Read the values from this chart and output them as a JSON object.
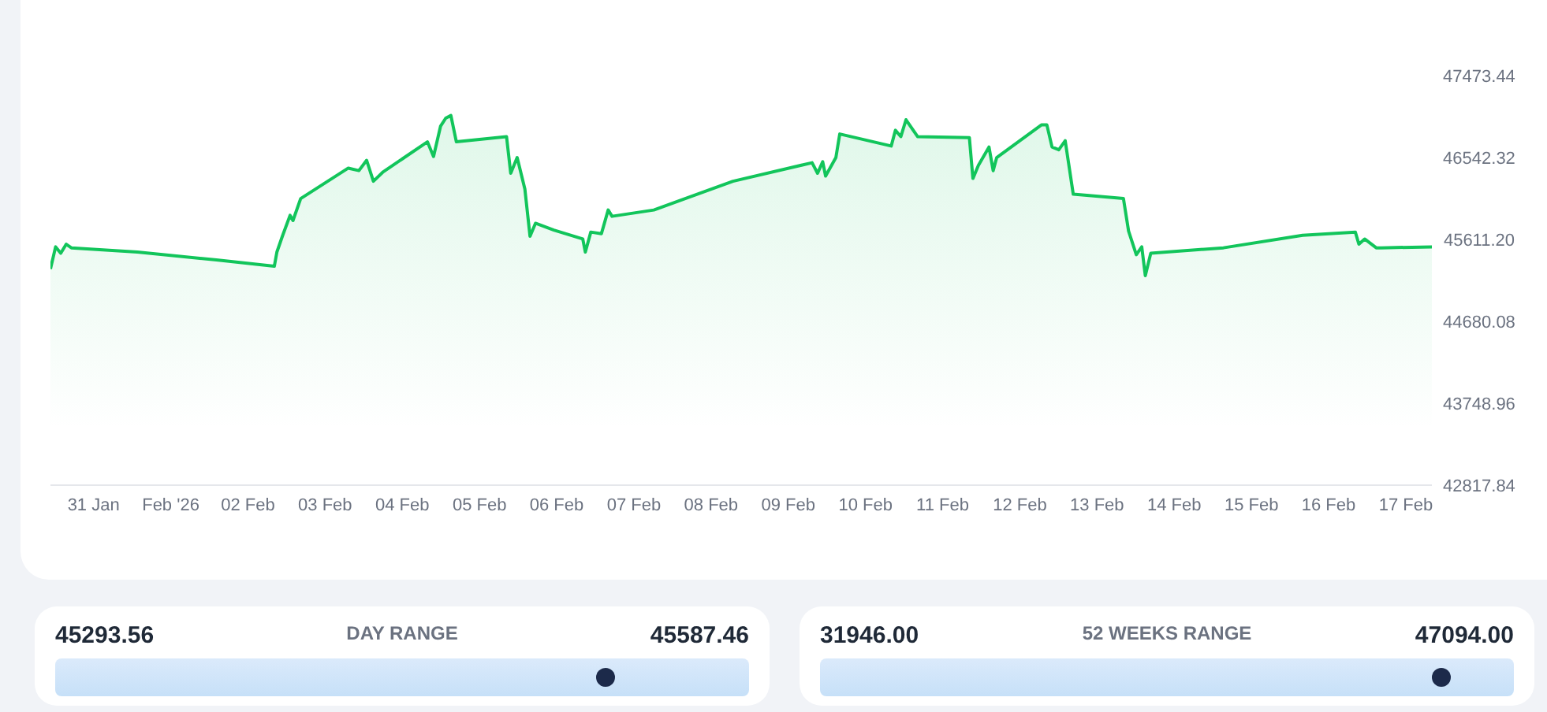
{
  "chart_data": [
    {
      "type": "area",
      "x": [
        "2026-01-30T10:36",
        "2026-01-30T12:12",
        "2026-01-30T13:48",
        "2026-01-30T15:30",
        "2026-01-30T17:06",
        "2026-01-31T13:36",
        "2026-02-01T14:12",
        "2026-02-02T08:12",
        "2026-02-02T09:00",
        "2026-02-02T10:42",
        "2026-02-02T13:06",
        "2026-02-02T14:00",
        "2026-02-02T16:24",
        "2026-02-03T07:12",
        "2026-02-03T10:30",
        "2026-02-03T12:54",
        "2026-02-03T15:00",
        "2026-02-03T17:54",
        "2026-02-04T07:48",
        "2026-02-04T09:42",
        "2026-02-04T11:54",
        "2026-02-04T13:30",
        "2026-02-04T15:06",
        "2026-02-04T16:48",
        "2026-02-05T08:24",
        "2026-02-05T09:42",
        "2026-02-05T11:42",
        "2026-02-05T14:06",
        "2026-02-05T15:42",
        "2026-02-05T17:24",
        "2026-02-05T23:06",
        "2026-02-06T08:06",
        "2026-02-06T08:54",
        "2026-02-06T10:36",
        "2026-02-06T13:54",
        "2026-02-06T16:00",
        "2026-02-06T17:12",
        "2026-02-07T06:12",
        "2026-02-08T06:48",
        "2026-02-09T07:24",
        "2026-02-09T09:06",
        "2026-02-09T10:42",
        "2026-02-09T11:36",
        "2026-02-09T14:48",
        "2026-02-09T16:00",
        "2026-02-10T08:00",
        "2026-02-10T09:18",
        "2026-02-10T11:00",
        "2026-02-10T12:36",
        "2026-02-10T16:12",
        "2026-02-11T08:18",
        "2026-02-11T09:24",
        "2026-02-11T11:06",
        "2026-02-11T14:24",
        "2026-02-11T15:42",
        "2026-02-11T16:48",
        "2026-02-12T06:42",
        "2026-02-12T08:24",
        "2026-02-12T10:00",
        "2026-02-12T12:06",
        "2026-02-12T14:06",
        "2026-02-12T16:36",
        "2026-02-13T08:12",
        "2026-02-13T09:48",
        "2026-02-13T12:12",
        "2026-02-13T13:54",
        "2026-02-13T15:00",
        "2026-02-13T16:42",
        "2026-02-14T15:18",
        "2026-02-15T15:54",
        "2026-02-16T08:18",
        "2026-02-16T09:24",
        "2026-02-16T11:12",
        "2026-02-16T14:48",
        "2026-02-16T16:24",
        "2026-02-17T08:06"
      ],
      "series": [
        {
          "color": "#12c55b",
          "values": [
            45276,
            45527,
            45455,
            45557,
            45516,
            45468,
            45378,
            45306,
            45468,
            45647,
            45885,
            45826,
            46076,
            46422,
            46393,
            46511,
            46273,
            46375,
            46721,
            46554,
            46900,
            46990,
            47020,
            46721,
            46780,
            46363,
            46542,
            46184,
            45647,
            45795,
            45718,
            45616,
            45468,
            45695,
            45677,
            45946,
            45874,
            45946,
            46273,
            46483,
            46363,
            46494,
            46332,
            46542,
            46810,
            46673,
            46852,
            46780,
            46972,
            46780,
            46769,
            46304,
            46452,
            46662,
            46393,
            46542,
            46913,
            46913,
            46662,
            46631,
            46733,
            46125,
            46076,
            45706,
            45437,
            45527,
            45199,
            45455,
            45516,
            45659,
            45695,
            45557,
            45616,
            45516,
            45516,
            45527
          ]
        }
      ],
      "xticks": [
        {
          "value": "2026-01-31",
          "label": "31 Jan"
        },
        {
          "value": "2026-02-01",
          "label": "Feb '26"
        },
        {
          "value": "2026-02-02",
          "label": "02 Feb"
        },
        {
          "value": "2026-02-03",
          "label": "03 Feb"
        },
        {
          "value": "2026-02-04",
          "label": "04 Feb"
        },
        {
          "value": "2026-02-05",
          "label": "05 Feb"
        },
        {
          "value": "2026-02-06",
          "label": "06 Feb"
        },
        {
          "value": "2026-02-07",
          "label": "07 Feb"
        },
        {
          "value": "2026-02-08",
          "label": "08 Feb"
        },
        {
          "value": "2026-02-09",
          "label": "09 Feb"
        },
        {
          "value": "2026-02-10",
          "label": "10 Feb"
        },
        {
          "value": "2026-02-11",
          "label": "11 Feb"
        },
        {
          "value": "2026-02-12",
          "label": "12 Feb"
        },
        {
          "value": "2026-02-13",
          "label": "13 Feb"
        },
        {
          "value": "2026-02-14",
          "label": "14 Feb"
        },
        {
          "value": "2026-02-15",
          "label": "15 Feb"
        },
        {
          "value": "2026-02-16",
          "label": "16 Feb"
        },
        {
          "value": "2026-02-17",
          "label": "17 Feb"
        }
      ],
      "xlim": [
        "2026-01-30T10:36",
        "2026-02-17T08:06"
      ],
      "ylim": [
        42817.84,
        47473.44
      ],
      "yticks": [
        {
          "value": 42817.84,
          "label": "42817.84"
        },
        {
          "value": 43748.96,
          "label": "43748.96"
        },
        {
          "value": 44680.08,
          "label": "44680.08"
        },
        {
          "value": 45611.2,
          "label": "45611.20"
        },
        {
          "value": 46542.32,
          "label": "46542.32"
        },
        {
          "value": 47473.44,
          "label": "47473.44"
        }
      ],
      "grid": false,
      "legend": false
    },
    {
      "type": "other",
      "title": "DAY RANGE",
      "annotations": [
        "45293.56",
        "45587.46"
      ]
    },
    {
      "type": "other",
      "title": "52 WEEKS RANGE",
      "annotations": [
        "31946.00",
        "47094.00"
      ]
    }
  ]
}
